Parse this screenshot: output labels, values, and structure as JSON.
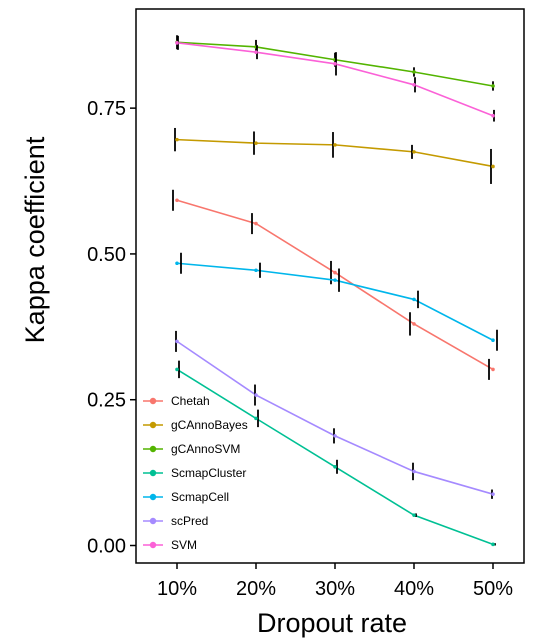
{
  "chart_data": {
    "type": "line",
    "title": "",
    "xlabel": "Dropout rate",
    "ylabel": "Kappa coefficient",
    "categories": [
      "10%",
      "20%",
      "30%",
      "40%",
      "50%"
    ],
    "ylim": [
      -0.03,
      0.92
    ],
    "yticks": [
      "0.00",
      "0.25",
      "0.50",
      "0.75"
    ],
    "ytick_values": [
      0,
      0.25,
      0.5,
      0.75
    ],
    "grid": false,
    "legend_position": "bottom-left",
    "series": [
      {
        "name": "Chetah",
        "color": "#F8766D",
        "values": [
          0.592,
          0.552,
          0.468,
          0.38,
          0.302
        ],
        "err": [
          0.018,
          0.018,
          0.02,
          0.02,
          0.018
        ]
      },
      {
        "name": "gCAnnoBayes",
        "color": "#C49A00",
        "values": [
          0.696,
          0.69,
          0.687,
          0.675,
          0.65
        ],
        "err": [
          0.02,
          0.02,
          0.022,
          0.012,
          0.03
        ]
      },
      {
        "name": "gCAnnoSVM",
        "color": "#53B400",
        "values": [
          0.863,
          0.855,
          0.833,
          0.812,
          0.788
        ],
        "err": [
          0.012,
          0.012,
          0.012,
          0.008,
          0.008
        ]
      },
      {
        "name": "ScmapCluster",
        "color": "#00C094",
        "values": [
          0.302,
          0.218,
          0.135,
          0.052,
          0.002
        ],
        "err": [
          0.015,
          0.015,
          0.012,
          0.003,
          0.002
        ]
      },
      {
        "name": "ScmapCell",
        "color": "#00B6EB",
        "values": [
          0.484,
          0.472,
          0.455,
          0.422,
          0.352
        ],
        "err": [
          0.018,
          0.013,
          0.02,
          0.015,
          0.018
        ]
      },
      {
        "name": "scPred",
        "color": "#A58AFF",
        "values": [
          0.35,
          0.258,
          0.188,
          0.127,
          0.088
        ],
        "err": [
          0.018,
          0.018,
          0.013,
          0.015,
          0.008
        ]
      },
      {
        "name": "SVM",
        "color": "#FB61D7",
        "values": [
          0.862,
          0.846,
          0.826,
          0.79,
          0.737
        ],
        "err": [
          0.012,
          0.012,
          0.02,
          0.013,
          0.01
        ]
      }
    ]
  }
}
